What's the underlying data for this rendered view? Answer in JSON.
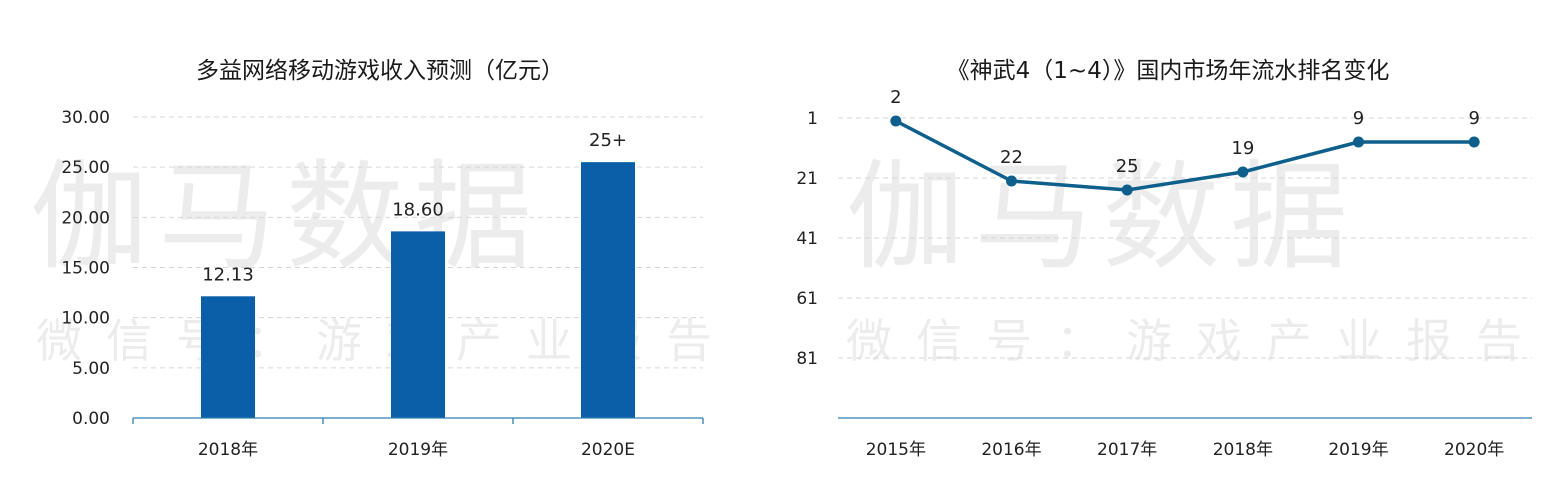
{
  "watermark": {
    "main": "伽马数据",
    "sub": "微信号：游戏产业报告"
  },
  "colors": {
    "bar": "#0b5ea8",
    "line": "#0e5f8c",
    "axis": "#2f7fb0",
    "grid": "#d6d6d6"
  },
  "chart_data": [
    {
      "type": "bar",
      "title": "多益网络移动游戏收入预测（亿元）",
      "categories": [
        "2018年",
        "2019年",
        "2020E"
      ],
      "values": [
        12.13,
        18.6,
        25.5
      ],
      "data_labels": [
        "12.13",
        "18.60",
        "25+"
      ],
      "yticks": [
        "0.00",
        "5.00",
        "10.00",
        "15.00",
        "20.00",
        "25.00",
        "30.00"
      ],
      "ylim": [
        0,
        30
      ],
      "grid": true,
      "legend": "none"
    },
    {
      "type": "line",
      "title": "《神武4（1~4）》国内市场年流水排名变化",
      "categories": [
        "2015年",
        "2016年",
        "2017年",
        "2018年",
        "2019年",
        "2020年"
      ],
      "values": [
        2,
        22,
        25,
        19,
        9,
        9
      ],
      "data_labels": [
        "2",
        "22",
        "25",
        "19",
        "9",
        "9"
      ],
      "yticks": [
        "1",
        "21",
        "41",
        "61",
        "81"
      ],
      "y_reversed": true,
      "ylim": [
        1,
        101
      ],
      "grid": true,
      "legend": "none"
    }
  ]
}
